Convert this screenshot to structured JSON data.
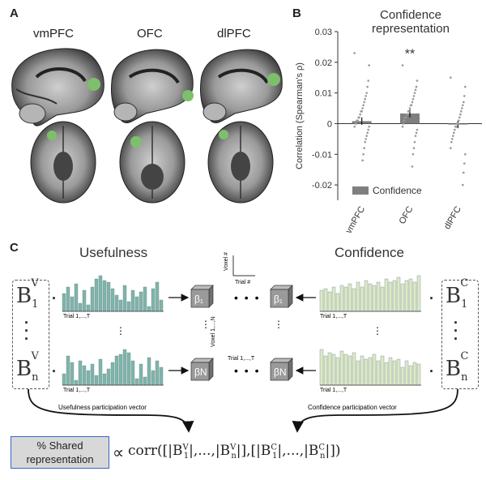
{
  "panel_a": {
    "letter": "A",
    "regions": [
      "vmPFC",
      "OFC",
      "dlPFC"
    ],
    "roi_color": "#7dc06b"
  },
  "panel_b": {
    "letter": "B"
  },
  "chart_data": {
    "type": "bar",
    "title": "Confidence representation",
    "ylabel": "Correlation (Spearman's ρ)",
    "categories": [
      "vmPFC",
      "OFC",
      "dlPFC"
    ],
    "series": [
      {
        "name": "Confidence",
        "values": [
          0.0008,
          0.0033,
          -0.0003
        ]
      }
    ],
    "errors": [
      0.0012,
      0.0013,
      0.0012
    ],
    "ylim": [
      -0.025,
      0.03
    ],
    "yticks": [
      "0.03",
      "0.02",
      "0.01",
      "0",
      "-0.01",
      "-0.02"
    ],
    "ytick_values": [
      0.03,
      0.02,
      0.01,
      0,
      -0.01,
      -0.02
    ],
    "significance": [
      "",
      "**",
      ""
    ],
    "legend_placement": "bottom-left",
    "bar_color": "#7f7f7f",
    "points": [
      [
        0.023,
        0.019,
        0.014,
        0.012,
        0.01,
        0.009,
        0.008,
        0.007,
        0.006,
        0.005,
        0.004,
        0.004,
        0.003,
        0.002,
        0.002,
        0.001,
        0.001,
        0.0,
        0.0,
        -0.001,
        -0.001,
        -0.002,
        -0.003,
        -0.004,
        -0.005,
        -0.006,
        -0.008,
        -0.01,
        -0.012
      ],
      [
        0.019,
        0.014,
        0.012,
        0.011,
        0.01,
        0.009,
        0.008,
        0.007,
        0.006,
        0.006,
        0.005,
        0.004,
        0.004,
        0.003,
        0.003,
        0.002,
        0.002,
        0.001,
        0.0,
        -0.001,
        -0.002,
        -0.003,
        -0.004,
        -0.006,
        -0.008,
        -0.01,
        -0.014
      ],
      [
        0.015,
        0.012,
        0.009,
        0.007,
        0.006,
        0.005,
        0.004,
        0.003,
        0.002,
        0.001,
        0.0,
        0.0,
        -0.001,
        -0.001,
        -0.002,
        -0.003,
        -0.004,
        -0.005,
        -0.006,
        -0.008,
        -0.01,
        -0.013,
        -0.016,
        -0.02
      ]
    ]
  },
  "panel_c": {
    "letter": "C",
    "usefulness_title": "Usefulness",
    "confidence_title": "Confidence",
    "trial_label": "Trial 1,...,T",
    "voxel_axis_y": "Voxel #",
    "voxel_axis_x": "Trial #",
    "voxel_dim": "Voxel 1,...,N",
    "trial_dim": "Trial 1,...,T",
    "usefulness_color": "#7fb4ac",
    "confidence_color": "#dfe8c6",
    "usefulness_vector_label": "Usefulness participation vector",
    "confidence_vector_label": "Confidence participation vector",
    "shared_box": "% Shared representation",
    "proportional": "∝",
    "ellipsis": "• • •"
  }
}
